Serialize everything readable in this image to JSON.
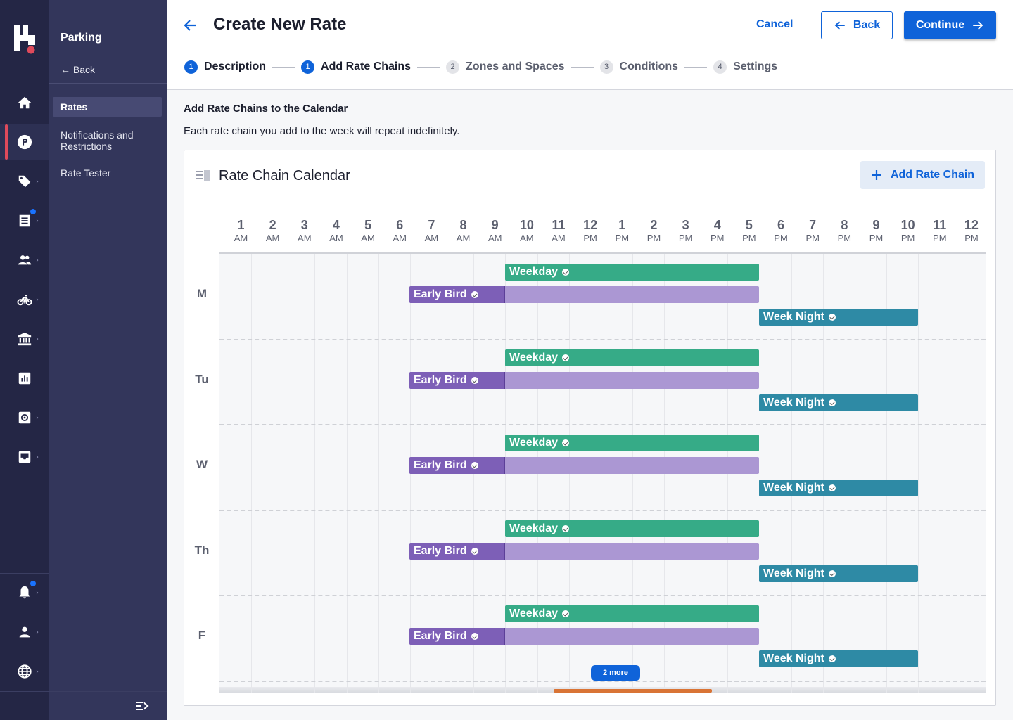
{
  "nav": {
    "section_title": "Parking",
    "back_label": "← Back",
    "items": [
      {
        "label": "Rates",
        "active": true
      },
      {
        "label": "Notifications and Restrictions",
        "active": false
      },
      {
        "label": "Rate Tester",
        "active": false
      }
    ],
    "rail_icons": [
      "home-icon",
      "parking-icon",
      "tag-icon",
      "receipt-icon",
      "people-icon",
      "bicycle-icon",
      "bank-icon",
      "chart-icon",
      "settings-icon",
      "inbox-icon",
      "bell-icon",
      "person-icon",
      "globe-icon"
    ]
  },
  "header": {
    "title": "Create New Rate",
    "cancel_label": "Cancel",
    "back_label": "Back",
    "continue_label": "Continue"
  },
  "steps": [
    {
      "num": "1",
      "label": "Description",
      "state": "done"
    },
    {
      "num": "1",
      "label": "Add Rate Chains",
      "state": "done"
    },
    {
      "num": "2",
      "label": "Zones and Spaces",
      "state": "todo"
    },
    {
      "num": "3",
      "label": "Conditions",
      "state": "todo"
    },
    {
      "num": "4",
      "label": "Settings",
      "state": "todo"
    }
  ],
  "section": {
    "heading": "Add Rate Chains to the Calendar",
    "description": "Each rate chain you add to the week will repeat indefinitely."
  },
  "calendar": {
    "title": "Rate Chain Calendar",
    "add_label": "Add Rate Chain",
    "hours": [
      {
        "n": "1",
        "ap": "AM"
      },
      {
        "n": "2",
        "ap": "AM"
      },
      {
        "n": "3",
        "ap": "AM"
      },
      {
        "n": "4",
        "ap": "AM"
      },
      {
        "n": "5",
        "ap": "AM"
      },
      {
        "n": "6",
        "ap": "AM"
      },
      {
        "n": "7",
        "ap": "AM"
      },
      {
        "n": "8",
        "ap": "AM"
      },
      {
        "n": "9",
        "ap": "AM"
      },
      {
        "n": "10",
        "ap": "AM"
      },
      {
        "n": "11",
        "ap": "AM"
      },
      {
        "n": "12",
        "ap": "PM"
      },
      {
        "n": "1",
        "ap": "PM"
      },
      {
        "n": "2",
        "ap": "PM"
      },
      {
        "n": "3",
        "ap": "PM"
      },
      {
        "n": "4",
        "ap": "PM"
      },
      {
        "n": "5",
        "ap": "PM"
      },
      {
        "n": "6",
        "ap": "PM"
      },
      {
        "n": "7",
        "ap": "PM"
      },
      {
        "n": "8",
        "ap": "PM"
      },
      {
        "n": "9",
        "ap": "PM"
      },
      {
        "n": "10",
        "ap": "PM"
      },
      {
        "n": "11",
        "ap": "PM"
      },
      {
        "n": "12",
        "ap": "PM"
      }
    ],
    "days": [
      "M",
      "Tu",
      "W",
      "Th",
      "F"
    ],
    "chains": [
      {
        "name": "Weekday",
        "kind": "weekday",
        "start_hour": 9,
        "end_hour": 17
      },
      {
        "name": "Early Bird",
        "kind": "early",
        "start_hour": 6,
        "end_hour": 17
      },
      {
        "name": "Week Night",
        "kind": "weeknight",
        "start_hour": 17,
        "end_hour": 22
      }
    ],
    "more_label": "2 more"
  },
  "colors": {
    "primary": "#0f63d9",
    "weekday": "#36ab87",
    "early_bird": "#7d5fb7",
    "early_bird_extend": "#ab97d3",
    "week_night": "#2e8aa5",
    "sidebar": "#242645"
  }
}
